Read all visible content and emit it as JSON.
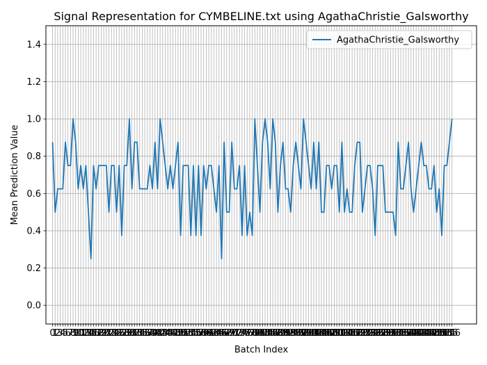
{
  "chart_data": {
    "type": "line",
    "title": "Signal Representation for CYMBELINE.txt using AgathaChristie_Galsworthy",
    "xlabel": "Batch Index",
    "ylabel": "Mean Prediction Value",
    "ylim": [
      -0.1,
      1.5
    ],
    "xlim": [
      -2.6,
      165.6
    ],
    "yticks": [
      0.0,
      0.2,
      0.4,
      0.6,
      0.8,
      1.0,
      1.2,
      1.4
    ],
    "grid": true,
    "legend_position": "top-right",
    "series": [
      {
        "name": "AgathaChristie_Galsworthy",
        "color": "#1f77b4",
        "values": [
          0.875,
          0.5,
          0.625,
          0.625,
          0.625,
          0.875,
          0.75,
          0.75,
          1.0,
          0.875,
          0.625,
          0.75,
          0.625,
          0.75,
          0.5,
          0.25,
          0.75,
          0.625,
          0.75,
          0.75,
          0.75,
          0.75,
          0.5,
          0.75,
          0.75,
          0.5,
          0.75,
          0.375,
          0.75,
          0.75,
          1.0,
          0.625,
          0.875,
          0.875,
          0.625,
          0.625,
          0.625,
          0.625,
          0.75,
          0.625,
          0.875,
          0.625,
          1.0,
          0.875,
          0.75,
          0.625,
          0.75,
          0.625,
          0.75,
          0.875,
          0.375,
          0.75,
          0.75,
          0.75,
          0.375,
          0.75,
          0.375,
          0.75,
          0.375,
          0.75,
          0.625,
          0.75,
          0.75,
          0.625,
          0.5,
          0.75,
          0.25,
          0.875,
          0.5,
          0.5,
          0.875,
          0.625,
          0.625,
          0.75,
          0.375,
          0.75,
          0.375,
          0.5,
          0.375,
          1.0,
          0.75,
          0.5,
          0.875,
          1.0,
          0.875,
          0.625,
          1.0,
          0.875,
          0.5,
          0.75,
          0.875,
          0.625,
          0.625,
          0.5,
          0.75,
          0.875,
          0.75,
          0.625,
          1.0,
          0.875,
          0.75,
          0.625,
          0.875,
          0.625,
          0.875,
          0.5,
          0.5,
          0.75,
          0.75,
          0.625,
          0.75,
          0.75,
          0.5,
          0.875,
          0.5,
          0.625,
          0.5,
          0.5,
          0.75,
          0.875,
          0.875,
          0.5,
          0.625,
          0.75,
          0.75,
          0.625,
          0.375,
          0.75,
          0.75,
          0.75,
          0.5,
          0.5,
          0.5,
          0.5,
          0.375,
          0.875,
          0.625,
          0.625,
          0.75,
          0.875,
          0.625,
          0.5,
          0.625,
          0.75,
          0.875,
          0.75,
          0.75,
          0.625,
          0.625,
          0.75,
          0.5,
          0.625,
          0.375,
          0.75,
          0.75,
          0.875,
          1.0
        ]
      }
    ]
  }
}
